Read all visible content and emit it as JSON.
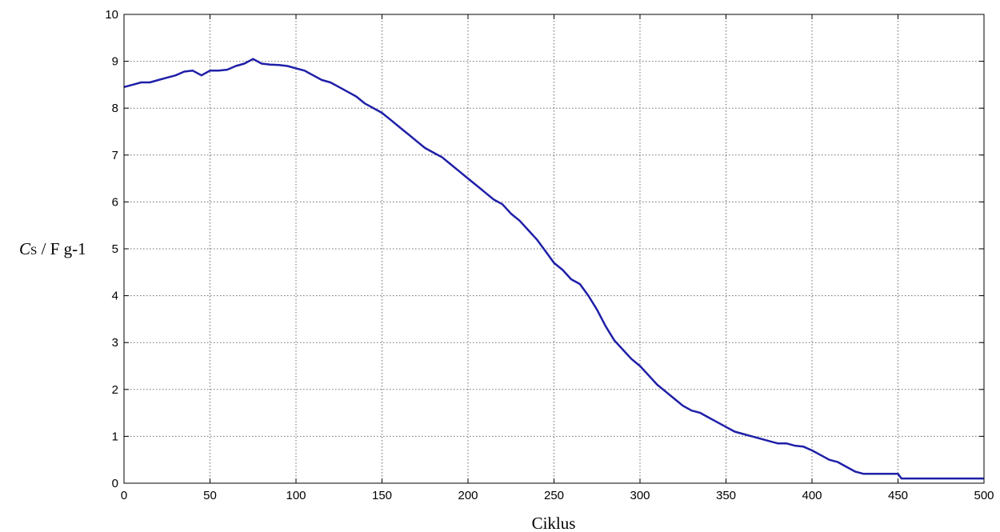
{
  "chart_data": {
    "type": "line",
    "title": "",
    "xlabel": "Ciklus",
    "ylabel": {
      "symbol": "C",
      "subscript": "S",
      "rest": " / F g-1"
    },
    "xlim": [
      0,
      500
    ],
    "ylim": [
      0,
      10
    ],
    "xticks": [
      "0",
      "50",
      "100",
      "150",
      "200",
      "250",
      "300",
      "350",
      "400",
      "450",
      "500"
    ],
    "yticks": [
      "0",
      "1",
      "2",
      "3",
      "4",
      "5",
      "6",
      "7",
      "8",
      "9",
      "10"
    ],
    "grid": true,
    "line_color": "#1f1fa8",
    "series": [
      {
        "x": [
          0,
          5,
          10,
          15,
          20,
          25,
          30,
          35,
          40,
          45,
          50,
          55,
          60,
          65,
          70,
          75,
          80,
          85,
          90,
          95,
          100,
          105,
          110,
          115,
          120,
          125,
          130,
          135,
          140,
          145,
          150,
          155,
          160,
          165,
          170,
          175,
          180,
          185,
          190,
          195,
          200,
          205,
          210,
          215,
          220,
          225,
          230,
          235,
          240,
          245,
          250,
          255,
          260,
          265,
          270,
          275,
          280,
          285,
          290,
          295,
          300,
          305,
          310,
          315,
          320,
          325,
          330,
          335,
          340,
          345,
          350,
          355,
          360,
          365,
          370,
          375,
          380,
          385,
          390,
          395,
          400,
          405,
          410,
          415,
          420,
          425,
          430,
          435,
          440,
          445,
          450,
          452,
          455,
          460,
          470,
          480,
          490,
          500
        ],
        "y": [
          8.45,
          8.5,
          8.55,
          8.55,
          8.6,
          8.65,
          8.7,
          8.78,
          8.8,
          8.7,
          8.8,
          8.8,
          8.82,
          8.9,
          8.95,
          9.05,
          8.95,
          8.93,
          8.92,
          8.9,
          8.85,
          8.8,
          8.7,
          8.6,
          8.55,
          8.45,
          8.35,
          8.25,
          8.1,
          8.0,
          7.9,
          7.75,
          7.6,
          7.45,
          7.3,
          7.15,
          7.05,
          6.95,
          6.8,
          6.65,
          6.5,
          6.35,
          6.2,
          6.05,
          5.95,
          5.75,
          5.6,
          5.4,
          5.2,
          4.95,
          4.7,
          4.55,
          4.35,
          4.25,
          4.0,
          3.7,
          3.35,
          3.05,
          2.85,
          2.65,
          2.5,
          2.3,
          2.1,
          1.95,
          1.8,
          1.65,
          1.55,
          1.5,
          1.4,
          1.3,
          1.2,
          1.1,
          1.05,
          1.0,
          0.95,
          0.9,
          0.85,
          0.85,
          0.8,
          0.78,
          0.7,
          0.6,
          0.5,
          0.45,
          0.35,
          0.25,
          0.2,
          0.2,
          0.2,
          0.2,
          0.2,
          0.1,
          0.1,
          0.1,
          0.1,
          0.1,
          0.1,
          0.1
        ]
      }
    ]
  }
}
